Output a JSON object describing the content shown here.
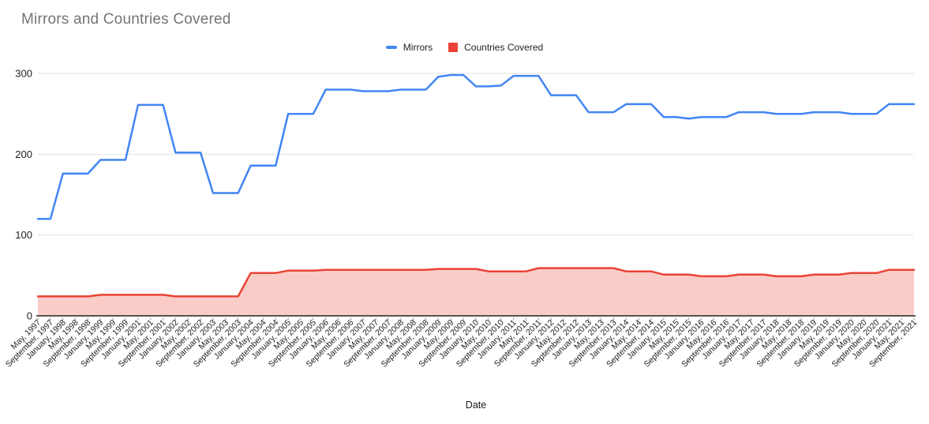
{
  "title": "Mirrors and Countries Covered",
  "chart_data": {
    "type": "line",
    "title": "Mirrors and Countries Covered",
    "xlabel": "Date",
    "ylabel": "",
    "ylim": [
      0,
      300
    ],
    "yticks": [
      0,
      100,
      200,
      300
    ],
    "grid": true,
    "legend_position": "top-center",
    "colors": {
      "mirrors_line": "#4285F4",
      "countries_line": "#EA4335",
      "countries_fill": "#EA4335",
      "countries_fill_opacity": 0.27,
      "gridline": "#E2E2E2",
      "baseline": "#222222",
      "tick": "#999999",
      "axis_text": "#222222",
      "title_text": "#757575"
    },
    "x_labels": [
      "May, 1997",
      "September, 1997",
      "January, 1998",
      "May, 1998",
      "September, 1998",
      "January, 1999",
      "May, 1999",
      "September, 1999",
      "January, 2001",
      "May, 2001",
      "September, 2001",
      "January, 2002",
      "May, 2002",
      "September, 2002",
      "January, 2003",
      "May, 2003",
      "September, 2003",
      "January, 2004",
      "May, 2004",
      "September, 2004",
      "January, 2005",
      "May, 2005",
      "September, 2005",
      "January, 2006",
      "May, 2006",
      "September, 2006",
      "January, 2007",
      "May, 2007",
      "September, 2007",
      "January, 2008",
      "May, 2008",
      "September, 2008",
      "January, 2009",
      "May, 2009",
      "September, 2009",
      "January, 2010",
      "May, 2010",
      "September, 2010",
      "January, 2011",
      "May, 2011",
      "September, 2011",
      "January, 2012",
      "May, 2012",
      "September, 2012",
      "January, 2013",
      "May, 2013",
      "September, 2013",
      "January, 2014",
      "May, 2014",
      "September, 2014",
      "January, 2015",
      "May, 2015",
      "September, 2015",
      "January, 2016",
      "May, 2016",
      "September, 2016",
      "January, 2017",
      "May, 2017",
      "September, 2017",
      "January, 2018",
      "May, 2018",
      "September, 2018",
      "January, 2019",
      "May, 2019",
      "September, 2019",
      "January, 2020",
      "May, 2020",
      "September, 2020",
      "January, 2021",
      "May, 2021",
      "September, 2021"
    ],
    "series": [
      {
        "name": "Mirrors",
        "type": "line",
        "color": "#4285F4",
        "values": [
          120,
          120,
          176,
          176,
          176,
          193,
          193,
          193,
          261,
          261,
          261,
          202,
          202,
          202,
          152,
          152,
          152,
          186,
          186,
          186,
          250,
          250,
          250,
          280,
          280,
          280,
          278,
          278,
          278,
          280,
          280,
          280,
          296,
          298,
          298,
          284,
          284,
          285,
          297,
          297,
          297,
          273,
          273,
          273,
          252,
          252,
          252,
          262,
          262,
          262,
          246,
          246,
          244,
          246,
          246,
          246,
          252,
          252,
          252,
          250,
          250,
          250,
          252,
          252,
          252,
          250,
          250,
          250,
          262,
          262,
          262
        ]
      },
      {
        "name": "Countries Covered",
        "type": "area",
        "color": "#EA4335",
        "values": [
          24,
          24,
          24,
          24,
          24,
          26,
          26,
          26,
          26,
          26,
          26,
          24,
          24,
          24,
          24,
          24,
          24,
          53,
          53,
          53,
          56,
          56,
          56,
          57,
          57,
          57,
          57,
          57,
          57,
          57,
          57,
          57,
          58,
          58,
          58,
          58,
          55,
          55,
          55,
          55,
          59,
          59,
          59,
          59,
          59,
          59,
          59,
          55,
          55,
          55,
          51,
          51,
          51,
          49,
          49,
          49,
          51,
          51,
          51,
          49,
          49,
          49,
          51,
          51,
          51,
          53,
          53,
          53,
          57,
          57,
          57
        ]
      }
    ]
  }
}
